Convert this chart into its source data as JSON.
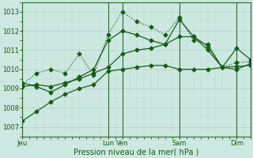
{
  "xlabel": "Pression niveau de la mer( hPa )",
  "ylim": [
    1006.5,
    1013.5
  ],
  "yticks": [
    1007,
    1008,
    1009,
    1010,
    1011,
    1012,
    1013
  ],
  "bg_color": "#cce8e0",
  "grid_major_color": "#aad4cc",
  "grid_minor_color": "#bbddd6",
  "line_color": "#1a5c1a",
  "vline_color": "#2d6b2d",
  "xlim": [
    0,
    96
  ],
  "vline_positions": [
    0,
    36,
    42,
    66,
    90
  ],
  "xtick_positions": [
    0,
    36,
    42,
    66,
    90
  ],
  "xtick_labels": [
    "Jeu",
    "Lun",
    "Ven",
    "Sam",
    "Dim"
  ],
  "line1_x": [
    0,
    6,
    12,
    18,
    24,
    30,
    36,
    42,
    48,
    54,
    60,
    66,
    72,
    78,
    84,
    90,
    96
  ],
  "line1_y": [
    1007.3,
    1007.8,
    1008.3,
    1008.7,
    1009.0,
    1009.2,
    1009.9,
    1010.0,
    1010.1,
    1010.2,
    1010.2,
    1010.0,
    1010.0,
    1010.0,
    1010.1,
    1010.0,
    1010.3
  ],
  "line2_x": [
    0,
    6,
    12,
    18,
    24,
    30,
    36,
    42,
    48,
    54,
    60,
    66,
    72,
    78,
    84,
    90,
    96
  ],
  "line2_y": [
    1009.1,
    1009.2,
    1009.1,
    1009.3,
    1009.5,
    1009.8,
    1010.1,
    1010.8,
    1011.0,
    1011.1,
    1011.3,
    1011.7,
    1011.7,
    1011.0,
    1010.1,
    1010.15,
    1010.2
  ],
  "line3_x": [
    0,
    6,
    12,
    18,
    24,
    30,
    36,
    42,
    48,
    54,
    60,
    66,
    72,
    78,
    84,
    90,
    96
  ],
  "line3_y": [
    1009.3,
    1009.1,
    1008.8,
    1009.2,
    1009.6,
    1010.0,
    1011.5,
    1012.0,
    1011.8,
    1011.5,
    1011.3,
    1012.6,
    1011.7,
    1011.2,
    1010.1,
    1011.1,
    1010.5
  ],
  "line4_x": [
    0,
    6,
    12,
    18,
    24,
    30,
    36,
    42,
    48,
    54,
    60,
    66,
    72,
    78,
    84,
    90,
    96
  ],
  "line4_y": [
    1009.2,
    1009.8,
    1010.0,
    1009.8,
    1010.8,
    1009.7,
    1011.8,
    1013.0,
    1012.5,
    1012.2,
    1011.8,
    1012.7,
    1011.5,
    1011.3,
    1010.1,
    1010.35,
    1010.4
  ],
  "markersize": 2.5,
  "linewidth": 0.9
}
